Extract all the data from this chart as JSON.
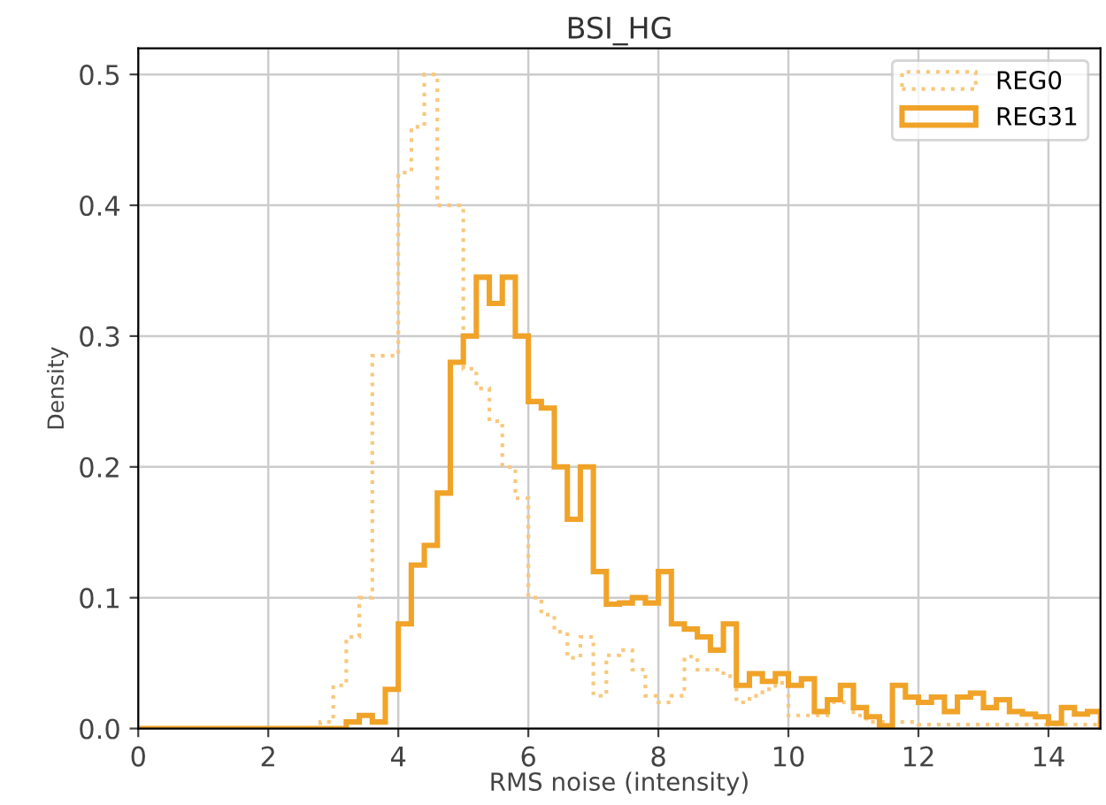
{
  "chart_data": {
    "type": "histogram",
    "title": "BSI_HG",
    "xlabel": "RMS noise (intensity)",
    "ylabel": "Density",
    "bins": [
      0,
      0.2,
      0.4,
      0.6,
      0.8,
      1.0,
      1.2,
      1.4,
      1.6,
      1.8,
      2.0,
      2.2,
      2.4,
      2.6,
      2.8,
      3.0,
      3.2,
      3.4,
      3.6,
      3.8,
      4.0,
      4.2,
      4.4,
      4.6,
      4.8,
      5.0,
      5.2,
      5.4,
      5.6,
      5.8,
      6.0,
      6.2,
      6.4,
      6.6,
      6.8,
      7.0,
      7.2,
      7.4,
      7.6,
      7.8,
      8.0,
      8.2,
      8.4,
      8.6,
      8.8,
      9.0,
      9.2,
      9.4,
      9.6,
      9.8,
      10.0,
      10.2,
      10.4,
      10.6,
      10.8,
      11.0,
      11.2,
      11.4,
      11.6,
      11.8,
      12.0,
      12.2,
      12.4,
      12.6,
      12.8,
      13.0,
      13.2,
      13.4,
      13.6,
      13.8,
      14.0,
      14.2,
      14.4,
      14.6,
      14.8
    ],
    "series": [
      {
        "name": "REG0",
        "color": "#f8c87c",
        "line_style": "dotted",
        "values": [
          0,
          0,
          0,
          0,
          0,
          0,
          0,
          0,
          0,
          0,
          0,
          0,
          0,
          0,
          0.005,
          0.033,
          0.07,
          0.1,
          0.285,
          0.285,
          0.425,
          0.46,
          0.5,
          0.4,
          0.4,
          0.275,
          0.26,
          0.235,
          0.2,
          0.176,
          0.1,
          0.087,
          0.074,
          0.054,
          0.07,
          0.025,
          0.056,
          0.06,
          0.045,
          0.025,
          0.02,
          0.025,
          0.055,
          0.045,
          0.045,
          0.04,
          0.02,
          0.025,
          0.03,
          0.035,
          0.01,
          0.01,
          0.01,
          0.02,
          0.02,
          0.01,
          0.005,
          0.005,
          0.005,
          0.005,
          0.003,
          0.003,
          0.003,
          0.003,
          0.003,
          0.003,
          0.003,
          0.003,
          0.003,
          0.003,
          0.003,
          0.003,
          0.003,
          0.003
        ]
      },
      {
        "name": "REG31",
        "color": "#f0a328",
        "line_style": "solid",
        "values": [
          0,
          0,
          0,
          0,
          0,
          0,
          0,
          0,
          0,
          0,
          0,
          0,
          0,
          0,
          0,
          0,
          0.005,
          0.01,
          0.005,
          0.03,
          0.08,
          0.125,
          0.14,
          0.18,
          0.28,
          0.3,
          0.345,
          0.325,
          0.345,
          0.3,
          0.25,
          0.245,
          0.2,
          0.16,
          0.2,
          0.12,
          0.095,
          0.096,
          0.1,
          0.096,
          0.12,
          0.08,
          0.076,
          0.07,
          0.06,
          0.08,
          0.033,
          0.042,
          0.036,
          0.042,
          0.033,
          0.038,
          0.013,
          0.022,
          0.033,
          0.016,
          0.009,
          0.002,
          0.033,
          0.024,
          0.02,
          0.024,
          0.013,
          0.024,
          0.027,
          0.016,
          0.022,
          0.013,
          0.011,
          0.009,
          0.004,
          0.016,
          0.011,
          0.013
        ]
      }
    ],
    "xlim": [
      0,
      14.8
    ],
    "ylim": [
      0,
      0.52
    ],
    "xticks": [
      0,
      2,
      4,
      6,
      8,
      10,
      12,
      14
    ],
    "yticks": [
      {
        "value": 0,
        "label": "0.0"
      },
      0.1,
      0.2,
      0.3,
      0.4,
      0.5
    ],
    "grid": true,
    "legend": "top right"
  }
}
